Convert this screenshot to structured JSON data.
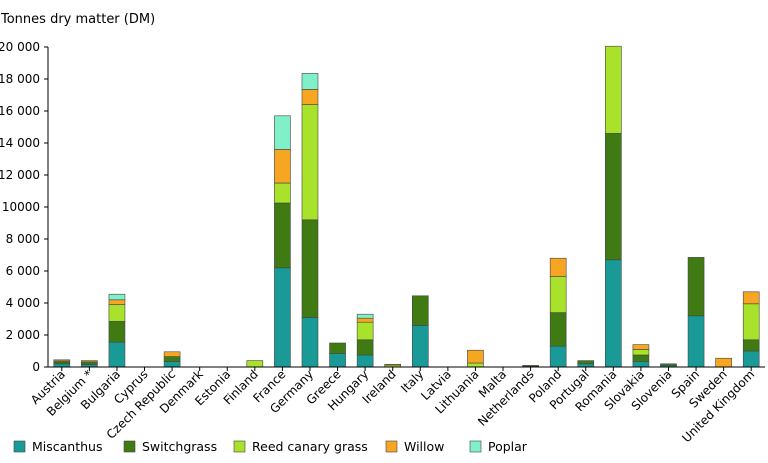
{
  "chart_data": {
    "type": "bar",
    "stacked": true,
    "ylabel": "Tonnes dry matter (DM)",
    "ylim": [
      0,
      20000
    ],
    "y_ticks": [
      0,
      2000,
      4000,
      6000,
      8000,
      10000,
      12000,
      14000,
      16000,
      18000,
      20000
    ],
    "y_tick_labels": [
      "0",
      "2 000",
      "4 000",
      "6 000",
      "8 000",
      "10000",
      "12 000",
      "14 000",
      "16 000",
      "18 000",
      "20 000"
    ],
    "grid": false,
    "legend_position": "bottom",
    "categories": [
      "Austria",
      "Belgium *",
      "Bulgaria",
      "Cyprus",
      "Czech Republic",
      "Denmark",
      "Estonia",
      "Finland",
      "France",
      "Germany",
      "Greece",
      "Hungary",
      "Ireland",
      "Italy",
      "Latvia",
      "Lithuania",
      "Malta",
      "Netherlands",
      "Poland",
      "Portugal",
      "Romania",
      "Slovakia",
      "Slovenia",
      "Spain",
      "Sweden",
      "United Kingdom"
    ],
    "series": [
      {
        "name": "Miscanthus",
        "color": "#1a9a96",
        "values": [
          200,
          150,
          1550,
          0,
          350,
          0,
          0,
          0,
          6200,
          3100,
          850,
          750,
          0,
          2600,
          0,
          0,
          0,
          40,
          1300,
          200,
          6700,
          350,
          100,
          3200,
          0,
          1000
        ]
      },
      {
        "name": "Switchgrass",
        "color": "#3f7a12",
        "values": [
          120,
          120,
          1300,
          0,
          300,
          0,
          0,
          0,
          4050,
          6100,
          650,
          950,
          0,
          1850,
          0,
          0,
          0,
          60,
          2100,
          200,
          7900,
          400,
          100,
          3650,
          0,
          700
        ]
      },
      {
        "name": "Reed canary grass",
        "color": "#a8e22a",
        "values": [
          60,
          50,
          1050,
          0,
          0,
          0,
          0,
          400,
          1250,
          7200,
          0,
          1100,
          120,
          0,
          0,
          250,
          0,
          0,
          2250,
          0,
          5450,
          350,
          0,
          0,
          0,
          2250
        ]
      },
      {
        "name": "Willow",
        "color": "#f6a623",
        "values": [
          70,
          80,
          300,
          0,
          300,
          0,
          0,
          0,
          2100,
          950,
          0,
          250,
          50,
          0,
          0,
          800,
          0,
          0,
          1150,
          0,
          0,
          300,
          0,
          0,
          550,
          750
        ]
      },
      {
        "name": "Poplar",
        "color": "#7ff0c8",
        "values": [
          0,
          0,
          350,
          0,
          0,
          0,
          0,
          0,
          2100,
          1000,
          0,
          250,
          0,
          0,
          0,
          0,
          0,
          0,
          0,
          0,
          0,
          0,
          0,
          0,
          0,
          0
        ]
      }
    ]
  }
}
